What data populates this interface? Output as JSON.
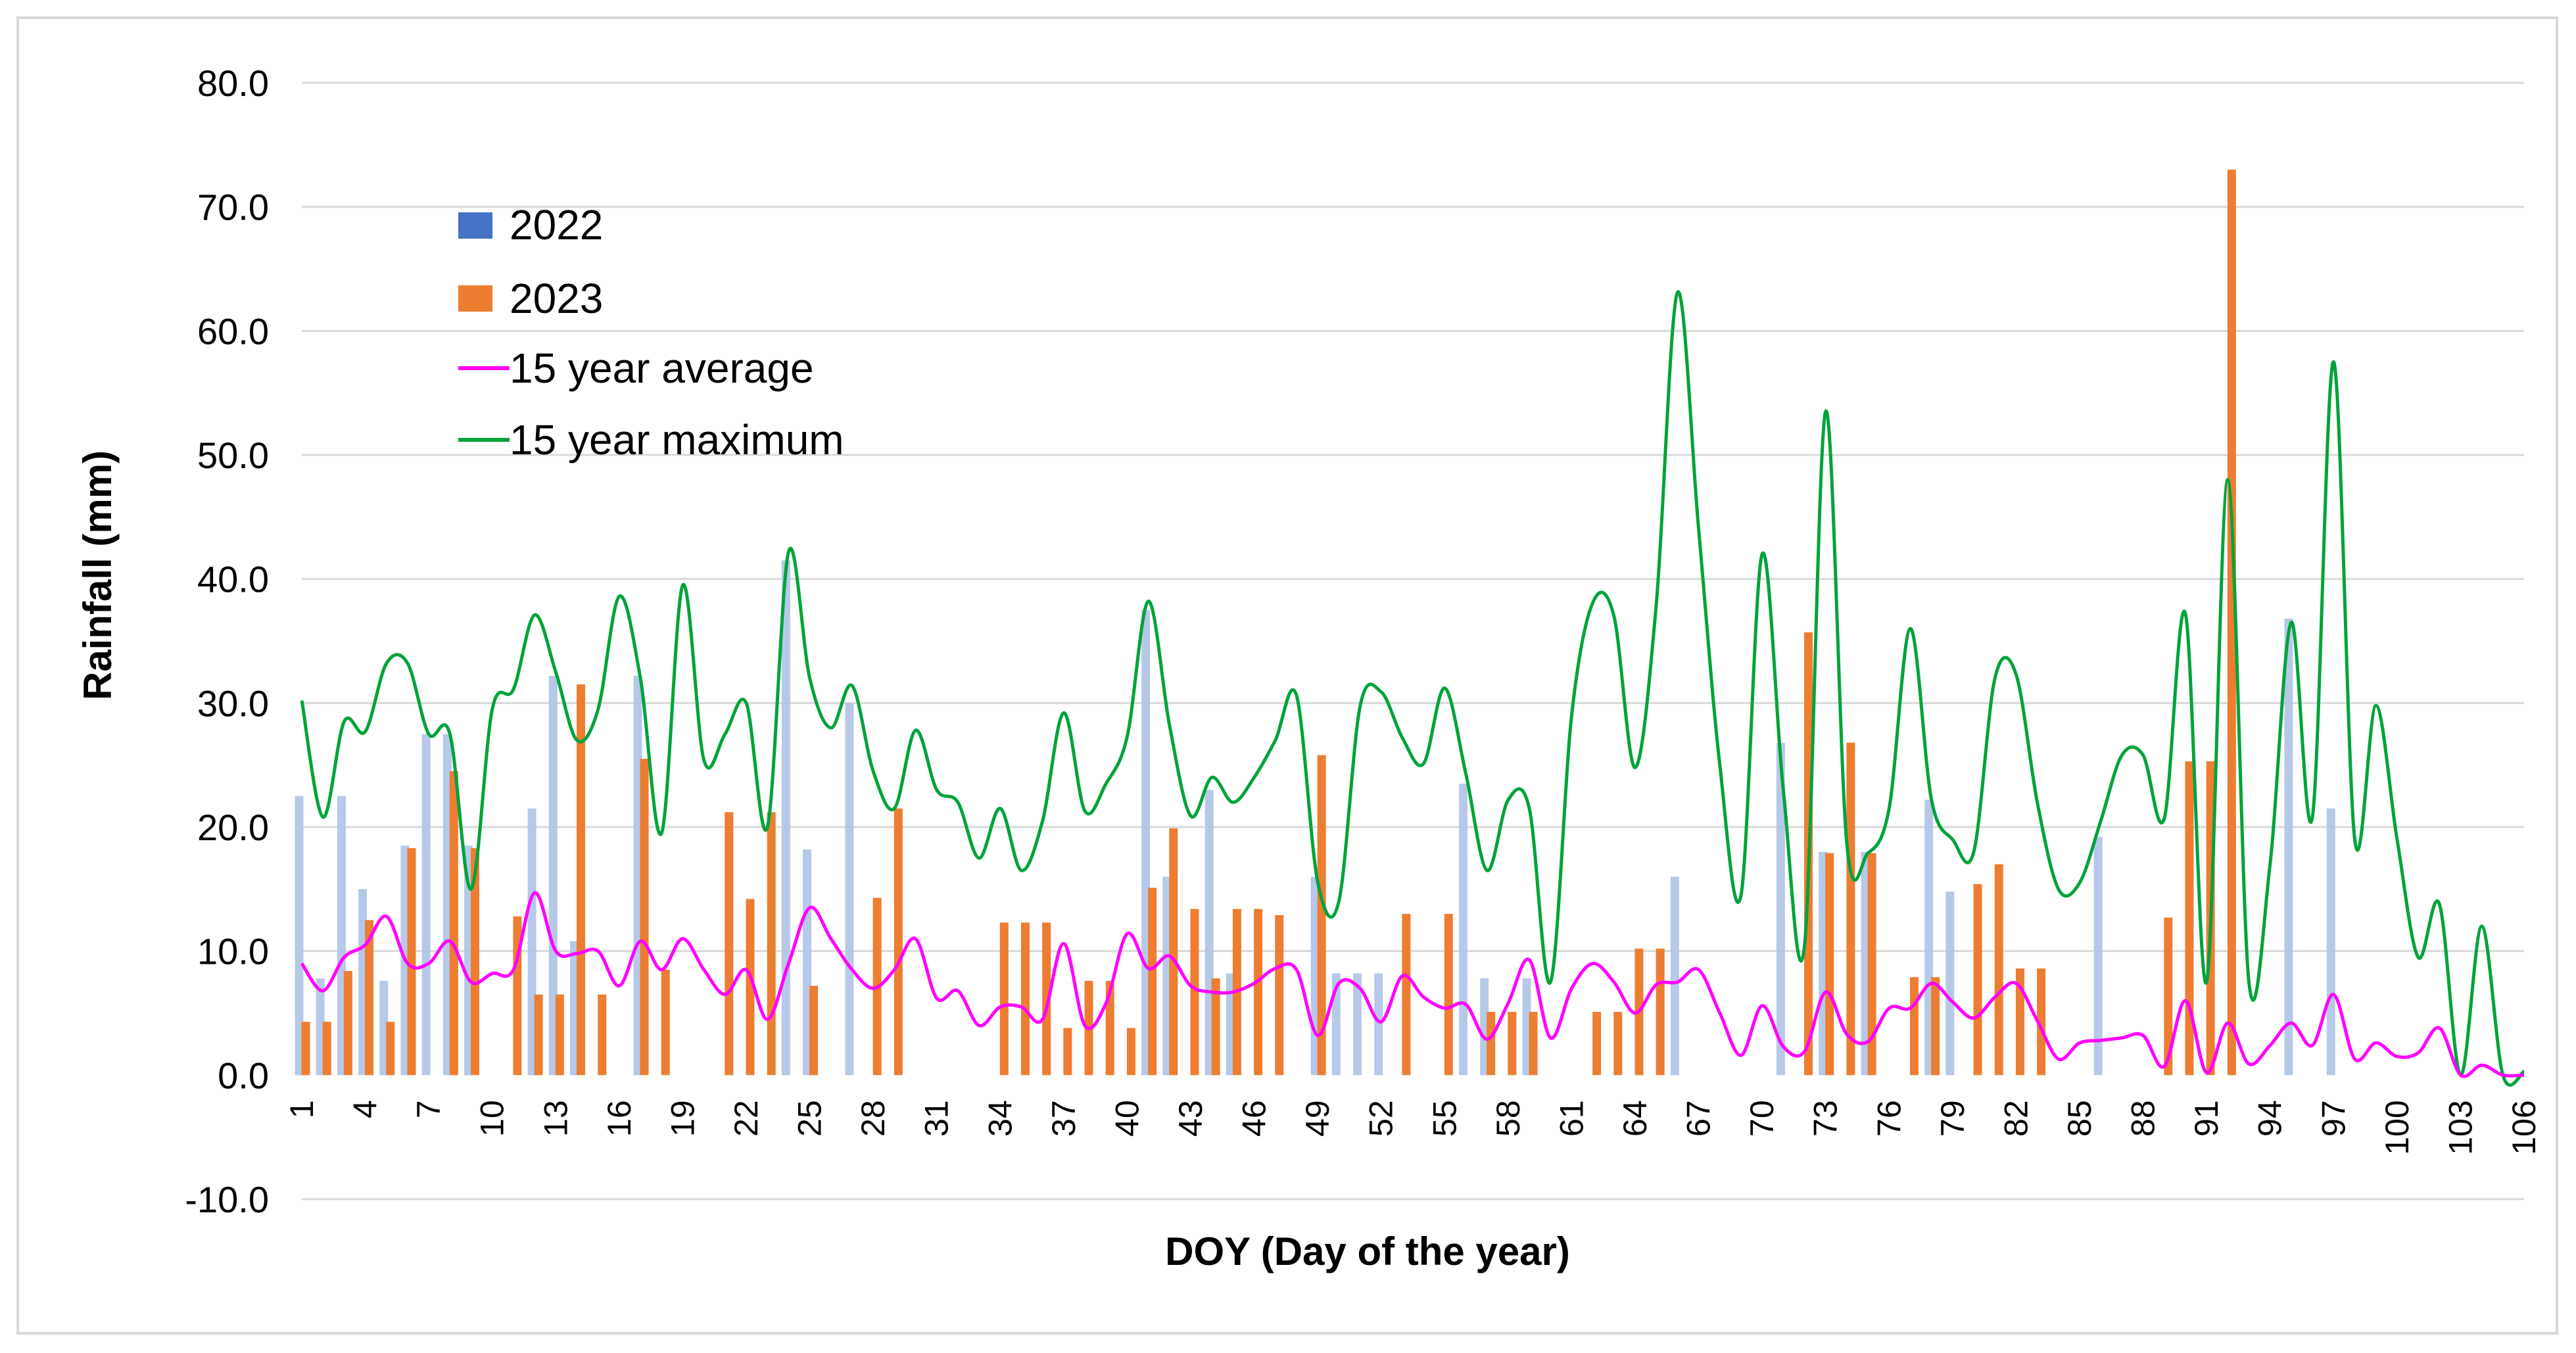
{
  "chart_data": {
    "type": "bar",
    "xlabel": "DOY (Day of the year)",
    "ylabel": "Rainfall (mm)",
    "ylim": [
      -10,
      80
    ],
    "y_ticks": [
      "80.0",
      "70.0",
      "60.0",
      "50.0",
      "40.0",
      "30.0",
      "20.0",
      "10.0",
      "0.0",
      "-10.0"
    ],
    "x_range": [
      1,
      106
    ],
    "x_tick_labels": [
      "1",
      "4",
      "7",
      "10",
      "13",
      "16",
      "19",
      "22",
      "25",
      "28",
      "31",
      "34",
      "37",
      "40",
      "43",
      "46",
      "49",
      "52",
      "55",
      "58",
      "61",
      "64",
      "67",
      "70",
      "73",
      "76",
      "79",
      "82",
      "85",
      "88",
      "91",
      "94",
      "97",
      "100",
      "103",
      "106"
    ],
    "grid": true,
    "legend_position": "top-left",
    "series": [
      {
        "name": "2022",
        "type": "bar",
        "color": "#4472c4",
        "x": [
          1,
          2,
          3,
          4,
          5,
          6,
          7,
          8,
          9,
          12,
          13,
          14,
          17,
          24,
          25,
          27,
          41,
          42,
          44,
          45,
          49,
          50,
          51,
          52,
          56,
          57,
          59,
          66,
          71,
          73,
          75,
          78,
          79,
          86,
          95,
          97
        ],
        "values": [
          22.5,
          7.8,
          22.5,
          15.0,
          7.6,
          18.5,
          27.5,
          27.5,
          18.5,
          21.5,
          32.2,
          10.8,
          32.2,
          41.5,
          18.2,
          30.0,
          37.5,
          16.0,
          23.0,
          8.2,
          16.0,
          8.2,
          8.2,
          8.2,
          23.5,
          7.8,
          7.8,
          16.0,
          26.8,
          18.0,
          18.0,
          22.2,
          14.8,
          19.2,
          36.8,
          21.5
        ]
      },
      {
        "name": "2023",
        "type": "bar",
        "color": "#ed7d31",
        "x": [
          1,
          2,
          3,
          4,
          5,
          6,
          8,
          9,
          11,
          12,
          13,
          14,
          15,
          17,
          18,
          21,
          22,
          23,
          25,
          28,
          29,
          34,
          35,
          36,
          37,
          38,
          39,
          40,
          41,
          42,
          43,
          44,
          45,
          46,
          47,
          49,
          53,
          55,
          57,
          58,
          59,
          62,
          63,
          64,
          65,
          72,
          73,
          74,
          75,
          77,
          78,
          80,
          81,
          82,
          83,
          89,
          90,
          91,
          92
        ],
        "values": [
          4.3,
          4.3,
          8.4,
          12.5,
          4.3,
          18.3,
          24.5,
          18.3,
          12.8,
          6.5,
          6.5,
          31.5,
          6.5,
          25.5,
          8.5,
          21.2,
          14.2,
          21.2,
          7.2,
          14.3,
          21.5,
          12.3,
          12.3,
          12.3,
          3.8,
          7.6,
          7.6,
          3.8,
          15.1,
          19.9,
          13.4,
          7.8,
          13.4,
          13.4,
          12.9,
          25.8,
          13.0,
          13.0,
          5.1,
          5.1,
          5.1,
          5.1,
          5.1,
          10.2,
          10.2,
          35.7,
          17.9,
          26.8,
          17.9,
          7.9,
          7.9,
          15.4,
          17.0,
          8.6,
          8.6,
          12.7,
          25.3,
          25.3,
          73.0
        ]
      },
      {
        "name": "15 year average",
        "type": "line",
        "color": "#ff00ff",
        "x": [
          1,
          2,
          3,
          4,
          5,
          6,
          7,
          8,
          9,
          10,
          11,
          12,
          13,
          14,
          15,
          16,
          17,
          18,
          19,
          20,
          21,
          22,
          23,
          24,
          25,
          26,
          27,
          28,
          29,
          30,
          31,
          32,
          33,
          34,
          35,
          36,
          37,
          38,
          39,
          40,
          41,
          42,
          43,
          44,
          45,
          46,
          47,
          48,
          49,
          50,
          51,
          52,
          53,
          54,
          55,
          56,
          57,
          58,
          59,
          60,
          61,
          62,
          63,
          64,
          65,
          66,
          67,
          68,
          69,
          70,
          71,
          72,
          73,
          74,
          75,
          76,
          77,
          78,
          79,
          80,
          81,
          82,
          83,
          84,
          85,
          86,
          87,
          88,
          89,
          90,
          91,
          92,
          93,
          94,
          95,
          96,
          97,
          98,
          99,
          100,
          101,
          102,
          103,
          104,
          105,
          106
        ],
        "values": [
          9.0,
          6.8,
          9.5,
          10.5,
          12.8,
          9.0,
          9.0,
          10.8,
          7.5,
          8.2,
          8.5,
          14.7,
          10.0,
          9.8,
          10.0,
          7.2,
          10.8,
          8.5,
          11.0,
          8.5,
          6.5,
          8.5,
          4.5,
          9.0,
          13.5,
          11.0,
          8.5,
          7.0,
          8.5,
          11.0,
          6.2,
          6.8,
          4.0,
          5.5,
          5.5,
          4.5,
          10.6,
          4.0,
          5.8,
          11.4,
          8.6,
          9.6,
          7.2,
          6.7,
          6.7,
          7.4,
          8.6,
          8.5,
          3.2,
          7.4,
          7.0,
          4.3,
          8.0,
          6.3,
          5.4,
          5.7,
          2.9,
          5.8,
          9.3,
          3.0,
          7.0,
          9.0,
          7.5,
          5.0,
          7.3,
          7.5,
          8.5,
          5.0,
          1.6,
          5.6,
          2.3,
          1.9,
          6.7,
          3.3,
          2.7,
          5.4,
          5.4,
          7.4,
          5.9,
          4.6,
          6.3,
          7.4,
          4.4,
          1.3,
          2.6,
          2.8,
          3.0,
          3.2,
          0.7,
          6.0,
          0.2,
          4.2,
          0.9,
          2.4,
          4.2,
          2.4,
          6.5,
          1.3,
          2.6,
          1.5,
          1.8,
          3.8,
          0.0,
          0.8,
          0.0,
          0.0
        ]
      },
      {
        "name": "15 year maximum",
        "type": "line",
        "color": "#00a33a",
        "x": [
          1,
          2,
          3,
          4,
          5,
          6,
          7,
          8,
          9,
          10,
          11,
          12,
          13,
          14,
          15,
          16,
          17,
          18,
          19,
          20,
          21,
          22,
          23,
          24,
          25,
          26,
          27,
          28,
          29,
          30,
          31,
          32,
          33,
          34,
          35,
          36,
          37,
          38,
          39,
          40,
          41,
          42,
          43,
          44,
          45,
          46,
          47,
          48,
          49,
          50,
          51,
          52,
          53,
          54,
          55,
          56,
          57,
          58,
          59,
          60,
          61,
          62,
          63,
          64,
          65,
          66,
          67,
          68,
          69,
          70,
          71,
          72,
          73,
          74,
          75,
          76,
          77,
          78,
          79,
          80,
          81,
          82,
          83,
          84,
          85,
          86,
          87,
          88,
          89,
          90,
          91,
          92,
          93,
          94,
          95,
          96,
          97,
          98,
          99,
          100,
          101,
          102,
          103,
          104,
          105,
          106
        ],
        "values": [
          30.2,
          20.8,
          28.5,
          27.7,
          33.2,
          33.2,
          27.5,
          27.5,
          15.0,
          29.5,
          31.1,
          37.1,
          32.5,
          27.0,
          29.5,
          38.6,
          32.0,
          19.5,
          39.5,
          25.4,
          27.5,
          30.0,
          20.0,
          42.2,
          32.0,
          28.0,
          31.4,
          24.5,
          21.5,
          27.8,
          23.0,
          22.0,
          17.5,
          21.5,
          16.5,
          20.5,
          29.2,
          21.3,
          23.5,
          27.3,
          38.2,
          28.2,
          20.9,
          24.0,
          22.0,
          24.0,
          27.0,
          30.6,
          15.6,
          14.0,
          29.7,
          30.9,
          27.2,
          25.1,
          31.2,
          24.3,
          16.5,
          22.2,
          21.5,
          7.5,
          29.0,
          38.1,
          37.0,
          24.8,
          38.0,
          63.1,
          44.0,
          25.0,
          14.5,
          42.0,
          23.0,
          10.4,
          53.5,
          18.7,
          17.9,
          21.5,
          36.0,
          22.2,
          19.0,
          18.0,
          32.0,
          32.3,
          22.0,
          15.0,
          15.5,
          20.5,
          25.8,
          25.8,
          20.7,
          37.2,
          7.5,
          48.0,
          7.5,
          17.0,
          36.5,
          20.8,
          57.5,
          19.0,
          29.8,
          19.0,
          9.5,
          13.8,
          0.0,
          12.0,
          0.0,
          0.3
        ]
      }
    ]
  }
}
